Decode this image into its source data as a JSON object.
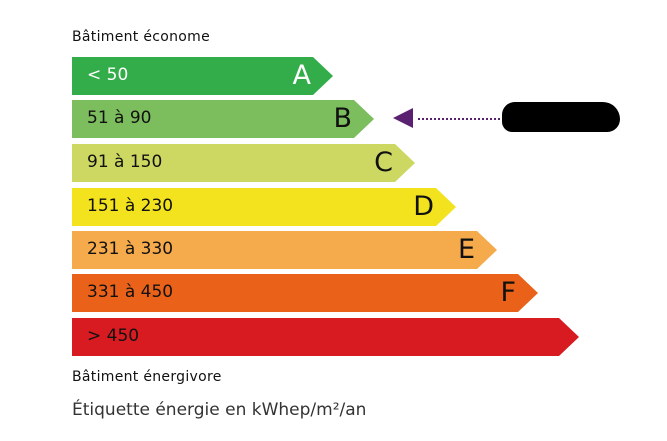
{
  "header": "Bâtiment économe",
  "footer_label": "Bâtiment énergivore",
  "unit_caption": "Étiquette énergie en kWhep/m²/an",
  "pointer_color": "#5a2170",
  "pointer_class": "B",
  "classes": [
    {
      "letter": "A",
      "range": "< 50",
      "color": "#33ad4a",
      "text_color": "#ffffff"
    },
    {
      "letter": "B",
      "range": "51 à 90",
      "color": "#7cbd5d",
      "text_color": "#111111"
    },
    {
      "letter": "C",
      "range": "91 à 150",
      "color": "#cdd862",
      "text_color": "#111111"
    },
    {
      "letter": "D",
      "range": "151 à 230",
      "color": "#f2e31e",
      "text_color": "#111111"
    },
    {
      "letter": "E",
      "range": "231 à 330",
      "color": "#f5aa4c",
      "text_color": "#111111"
    },
    {
      "letter": "F",
      "range": "331 à 450",
      "color": "#ea6219",
      "text_color": "#111111"
    },
    {
      "letter": "",
      "range": "> 450",
      "color": "#d81b20",
      "text_color": "#111111"
    }
  ]
}
